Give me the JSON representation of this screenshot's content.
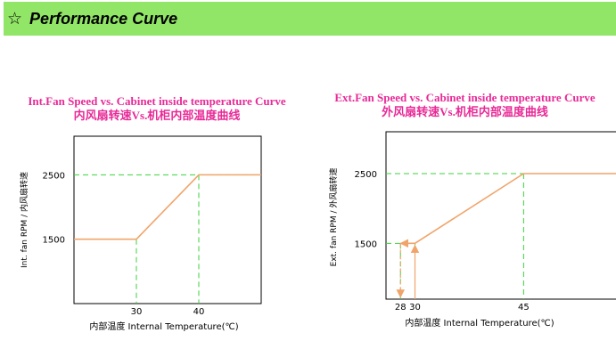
{
  "header": {
    "title": "Performance Curve",
    "icon": "star-outline-icon"
  },
  "colors": {
    "header_bg": "#92e667",
    "title": "#e82a97",
    "curve": "#f0a46a",
    "guide": "#3bd23b",
    "arrow": "#f0a46a"
  },
  "chart_data": [
    {
      "type": "line",
      "title": "Int.Fan Speed vs. Cabinet inside temperature Curve",
      "subtitle": "内风扇转速Vs.机柜内部温度曲线",
      "xlabel": "内部温度 Internal Temperature(℃)",
      "ylabel": "Int. fan RPM / 内风扇转速",
      "x_ticks": [
        "30",
        "40"
      ],
      "y_ticks": [
        "1500",
        "2500"
      ],
      "xlim": [
        20,
        50
      ],
      "ylim": [
        500,
        3100
      ],
      "series": [
        {
          "x": [
            20,
            30,
            40,
            50
          ],
          "y": [
            1500,
            1500,
            2500,
            2500
          ]
        }
      ],
      "grid": false
    },
    {
      "type": "line",
      "title": "Ext.Fan Speed vs. Cabinet inside temperature Curve",
      "subtitle": "外风扇转速Vs.机柜内部温度曲线",
      "xlabel": "内部温度 Internal Temperature(℃)",
      "ylabel": "Ext. fan RPM / 外风扇转速",
      "x_ticks": [
        "28",
        "30",
        "45"
      ],
      "y_ticks": [
        "1500",
        "2500"
      ],
      "xlim": [
        26,
        58
      ],
      "ylim": [
        700,
        3100
      ],
      "series": [
        {
          "x": [
            28,
            30,
            45,
            58
          ],
          "y": [
            1500,
            1500,
            2500,
            2500
          ]
        }
      ],
      "grid": false
    }
  ]
}
